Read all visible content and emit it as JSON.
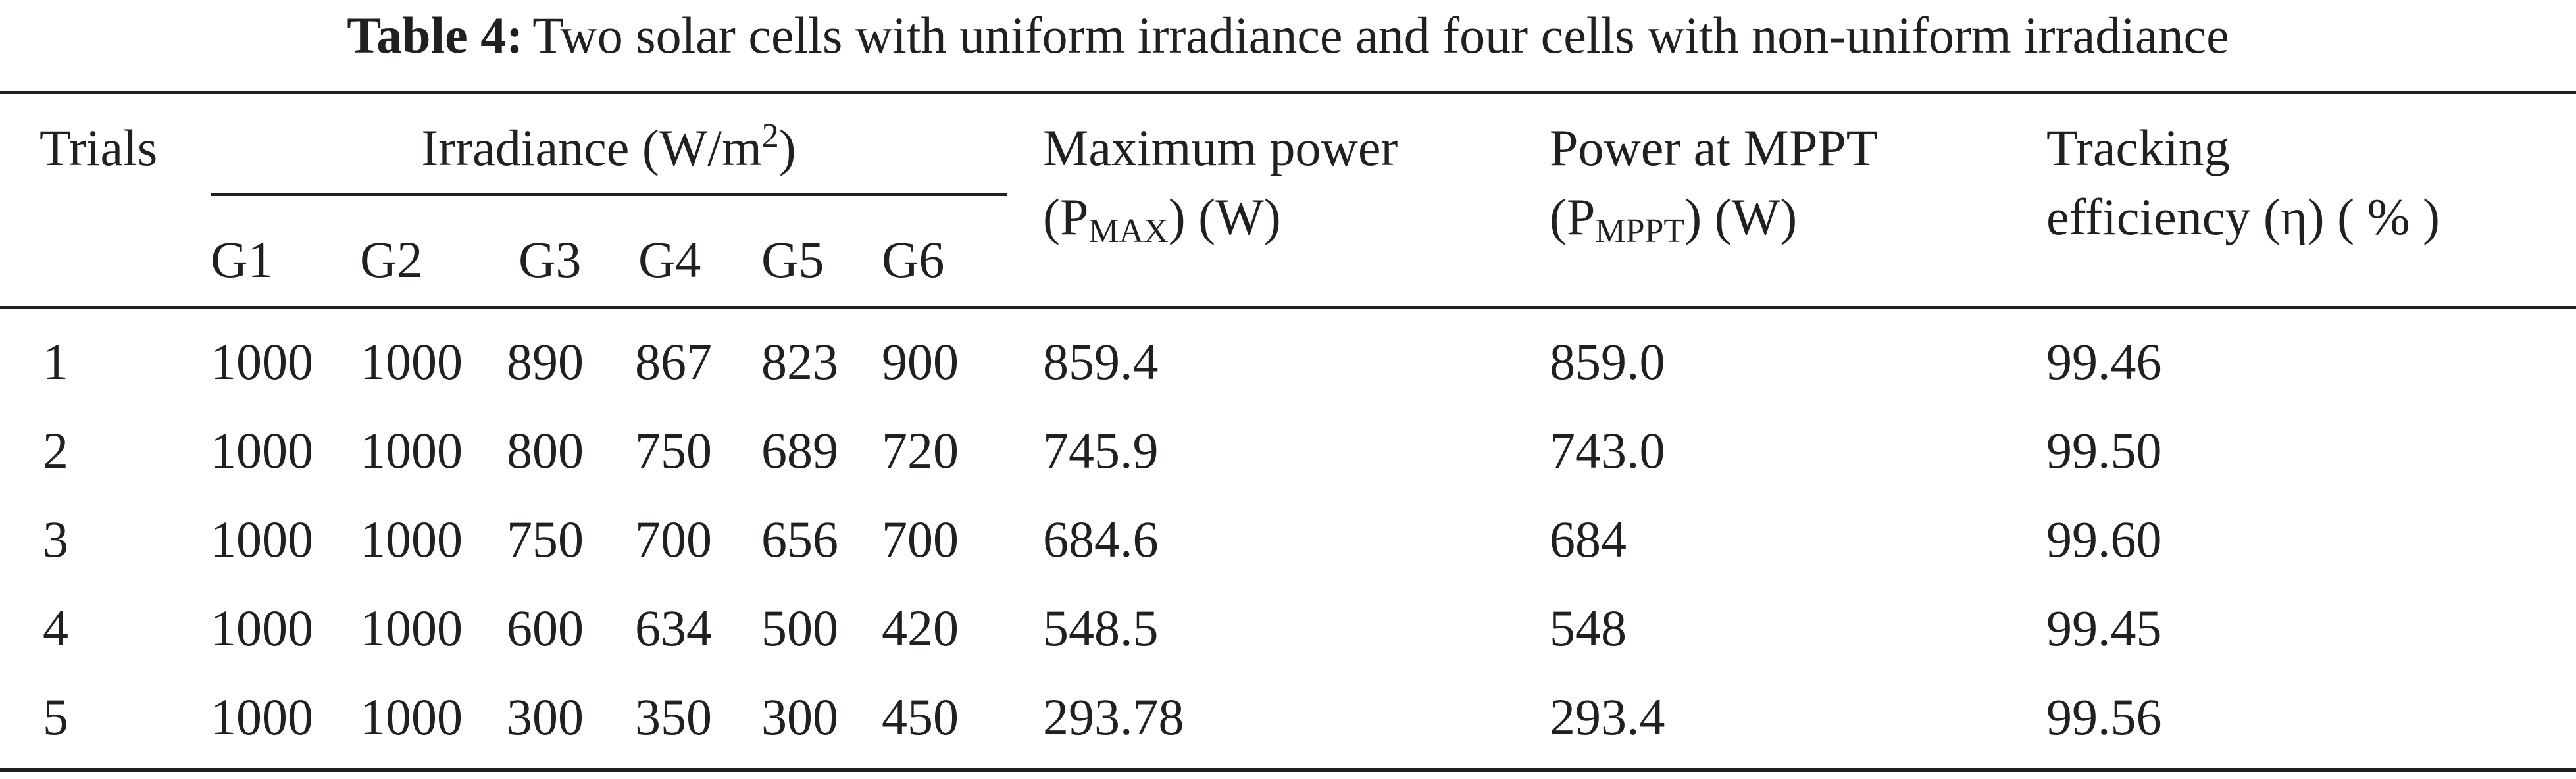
{
  "caption": {
    "label": "Table 4:",
    "text": "Two solar cells with uniform irradiance and four cells with non-uniform irradiance"
  },
  "header": {
    "trials": "Trials",
    "irradiance_group": "Irradiance (W/m",
    "irradiance_exp": "2",
    "irradiance_close": ")",
    "sub_columns": [
      "G1",
      "G2",
      "G3",
      "G4",
      "G5",
      "G6"
    ],
    "max_power_line1": "Maximum power",
    "max_power_open": "(P",
    "max_power_sub": "MAX",
    "max_power_close": ") (W)",
    "power_mppt_line1": "Power at MPPT",
    "power_mppt_open": "(P",
    "power_mppt_sub": "MPPT",
    "power_mppt_close": ") (W)",
    "efficiency_line1": "Tracking",
    "efficiency_line2": "efficiency (η) ( % )"
  },
  "rows": [
    {
      "trial": "1",
      "g": [
        "1000",
        "1000",
        "890",
        "867",
        "823",
        "900"
      ],
      "pmax": "859.4",
      "pmppt": "859.0",
      "eff": "99.46"
    },
    {
      "trial": "2",
      "g": [
        "1000",
        "1000",
        "800",
        "750",
        "689",
        "720"
      ],
      "pmax": "745.9",
      "pmppt": "743.0",
      "eff": "99.50"
    },
    {
      "trial": "3",
      "g": [
        "1000",
        "1000",
        "750",
        "700",
        "656",
        "700"
      ],
      "pmax": "684.6",
      "pmppt": "684",
      "eff": "99.60"
    },
    {
      "trial": "4",
      "g": [
        "1000",
        "1000",
        "600",
        "634",
        "500",
        "420"
      ],
      "pmax": "548.5",
      "pmppt": "548",
      "eff": "99.45"
    },
    {
      "trial": "5",
      "g": [
        "1000",
        "1000",
        "300",
        "350",
        "300",
        "450"
      ],
      "pmax": "293.78",
      "pmppt": "293.4",
      "eff": "99.56"
    }
  ]
}
